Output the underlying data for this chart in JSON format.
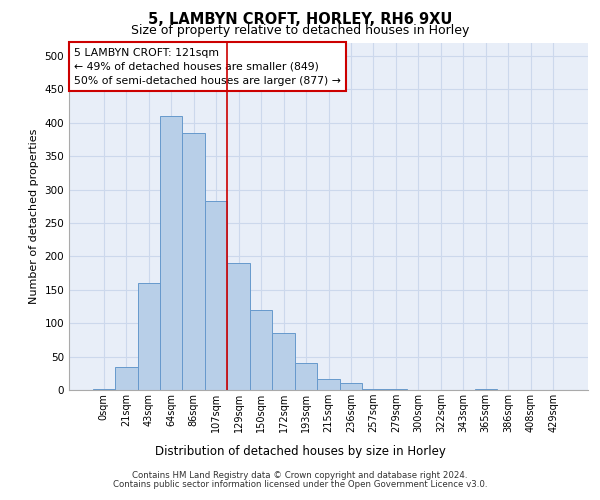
{
  "title1": "5, LAMBYN CROFT, HORLEY, RH6 9XU",
  "title2": "Size of property relative to detached houses in Horley",
  "xlabel": "Distribution of detached houses by size in Horley",
  "ylabel": "Number of detached properties",
  "footer1": "Contains HM Land Registry data © Crown copyright and database right 2024.",
  "footer2": "Contains public sector information licensed under the Open Government Licence v3.0.",
  "bar_labels": [
    "0sqm",
    "21sqm",
    "43sqm",
    "64sqm",
    "86sqm",
    "107sqm",
    "129sqm",
    "150sqm",
    "172sqm",
    "193sqm",
    "215sqm",
    "236sqm",
    "257sqm",
    "279sqm",
    "300sqm",
    "322sqm",
    "343sqm",
    "365sqm",
    "386sqm",
    "408sqm",
    "429sqm"
  ],
  "bar_values": [
    2,
    35,
    160,
    410,
    385,
    283,
    190,
    120,
    85,
    40,
    16,
    10,
    2,
    1,
    0,
    0,
    0,
    1,
    0,
    0,
    0
  ],
  "bar_color": "#b8cfe8",
  "bar_edge_color": "#6699cc",
  "grid_color": "#ccd8ec",
  "background_color": "#e8eef8",
  "annotation_text": "5 LAMBYN CROFT: 121sqm\n← 49% of detached houses are smaller (849)\n50% of semi-detached houses are larger (877) →",
  "annotation_box_color": "#ffffff",
  "annotation_box_edge": "#cc0000",
  "vline_color": "#cc0000",
  "vline_x": 5.5,
  "ylim": [
    0,
    520
  ],
  "yticks": [
    0,
    50,
    100,
    150,
    200,
    250,
    300,
    350,
    400,
    450,
    500
  ]
}
